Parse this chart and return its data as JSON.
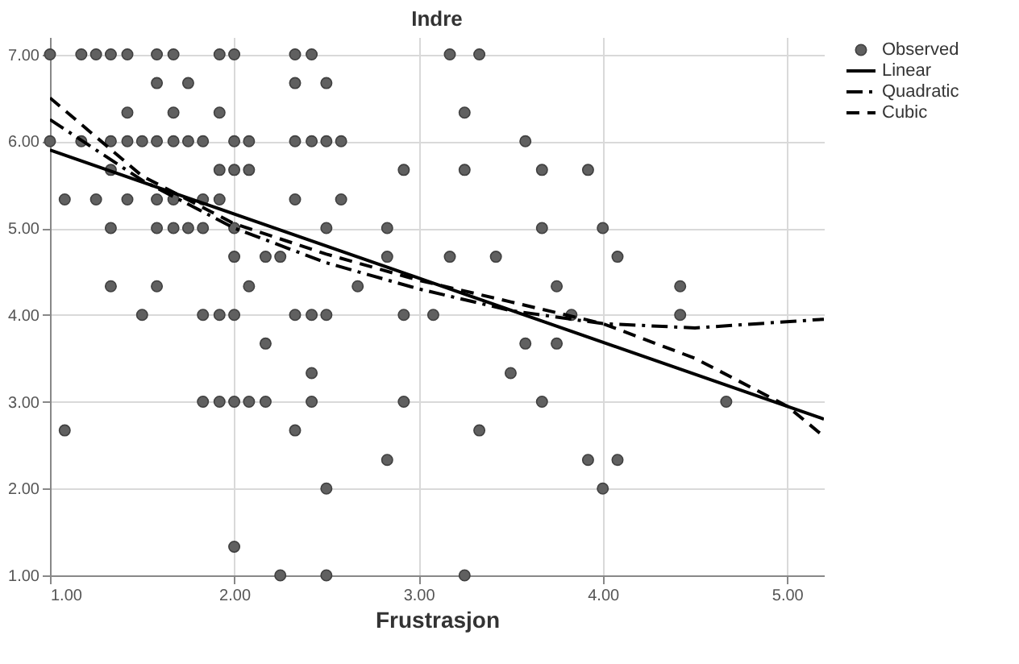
{
  "chart_data": {
    "type": "scatter",
    "title": "Indre",
    "xlabel": "Frustrasjon",
    "xlim": [
      1,
      5.2
    ],
    "ylim": [
      1,
      7.2
    ],
    "xticks": [
      {
        "value": 1,
        "label": "1.00"
      },
      {
        "value": 2,
        "label": "2.00"
      },
      {
        "value": 3,
        "label": "3.00"
      },
      {
        "value": 4,
        "label": "4.00"
      },
      {
        "value": 5,
        "label": "5.00"
      }
    ],
    "yticks": [
      {
        "value": 1,
        "label": "1.00"
      },
      {
        "value": 2,
        "label": "2.00"
      },
      {
        "value": 3,
        "label": "3.00"
      },
      {
        "value": 4,
        "label": "4.00"
      },
      {
        "value": 5,
        "label": "5.00"
      },
      {
        "value": 6,
        "label": "6.00"
      },
      {
        "value": 7,
        "label": "7.00"
      }
    ],
    "grid": true,
    "legend": "top right",
    "series": [
      {
        "name": "Observed",
        "marker": "circle",
        "color": "#606060",
        "x": [
          1,
          1.17,
          1.25,
          1.33,
          1.42,
          1.58,
          1.67,
          1.92,
          2,
          2.33,
          2.42,
          3.17,
          3.33,
          1.58,
          1.75,
          2.33,
          2.5,
          1.42,
          1.67,
          1.92,
          3.25,
          1,
          1.17,
          1.33,
          1.42,
          1.5,
          1.58,
          1.67,
          1.75,
          1.83,
          2,
          2.08,
          2.33,
          2.42,
          2.5,
          2.58,
          3.58,
          1.33,
          1.92,
          2,
          2.08,
          2.92,
          3.25,
          3.67,
          3.92,
          1.08,
          1.25,
          1.42,
          1.58,
          1.67,
          1.83,
          1.92,
          2.33,
          2.58,
          1.33,
          1.58,
          1.67,
          1.75,
          1.83,
          2,
          2.5,
          2.83,
          3.67,
          4,
          2,
          2.17,
          2.25,
          2.83,
          3.17,
          3.42,
          4.08,
          1.33,
          1.58,
          2.08,
          2.67,
          3.75,
          4.42,
          1.5,
          1.83,
          1.92,
          2,
          2.33,
          2.42,
          2.5,
          2.92,
          3.08,
          3.83,
          4.42,
          2.17,
          3.58,
          3.75,
          2.42,
          3.5,
          1.83,
          1.92,
          2,
          2.08,
          2.17,
          2.42,
          2.92,
          3.67,
          4.67,
          1.08,
          2.33,
          3.33,
          2.83,
          3.92,
          4.08,
          2.5,
          4,
          2,
          2.25,
          2.5,
          3.25
        ],
        "values": [
          7,
          7,
          7,
          7,
          7,
          7,
          7,
          7,
          7,
          7,
          7,
          7,
          7,
          6.67,
          6.67,
          6.67,
          6.67,
          6.33,
          6.33,
          6.33,
          6.33,
          6,
          6,
          6,
          6,
          6,
          6,
          6,
          6,
          6,
          6,
          6,
          6,
          6,
          6,
          6,
          6,
          5.67,
          5.67,
          5.67,
          5.67,
          5.67,
          5.67,
          5.67,
          5.67,
          5.33,
          5.33,
          5.33,
          5.33,
          5.33,
          5.33,
          5.33,
          5.33,
          5.33,
          5,
          5,
          5,
          5,
          5,
          5,
          5,
          5,
          5,
          5,
          4.67,
          4.67,
          4.67,
          4.67,
          4.67,
          4.67,
          4.67,
          4.33,
          4.33,
          4.33,
          4.33,
          4.33,
          4.33,
          4,
          4,
          4,
          4,
          4,
          4,
          4,
          4,
          4,
          4,
          4,
          3.67,
          3.67,
          3.67,
          3.33,
          3.33,
          3,
          3,
          3,
          3,
          3,
          3,
          3,
          3,
          3,
          2.67,
          2.67,
          2.67,
          2.33,
          2.33,
          2.33,
          2,
          2,
          1.33,
          1,
          1,
          1
        ]
      },
      {
        "name": "Linear",
        "type": "line",
        "line_style": "solid",
        "color": "#000000",
        "x": [
          1,
          5.2
        ],
        "values": [
          5.9,
          2.8
        ]
      },
      {
        "name": "Quadratic",
        "type": "line",
        "line_style": "dashdot",
        "color": "#000000",
        "x": [
          1,
          1.5,
          2,
          2.5,
          3,
          3.5,
          4,
          4.5,
          5.2
        ],
        "values": [
          6.25,
          5.55,
          5.0,
          4.6,
          4.3,
          4.05,
          3.9,
          3.85,
          3.95
        ]
      },
      {
        "name": "Cubic",
        "type": "line",
        "line_style": "dashed",
        "color": "#000000",
        "x": [
          1,
          1.5,
          2,
          2.5,
          3,
          3.5,
          4,
          4.5,
          5,
          5.2
        ],
        "values": [
          6.5,
          5.6,
          5.05,
          4.7,
          4.4,
          4.15,
          3.9,
          3.5,
          2.95,
          2.6
        ]
      }
    ]
  }
}
